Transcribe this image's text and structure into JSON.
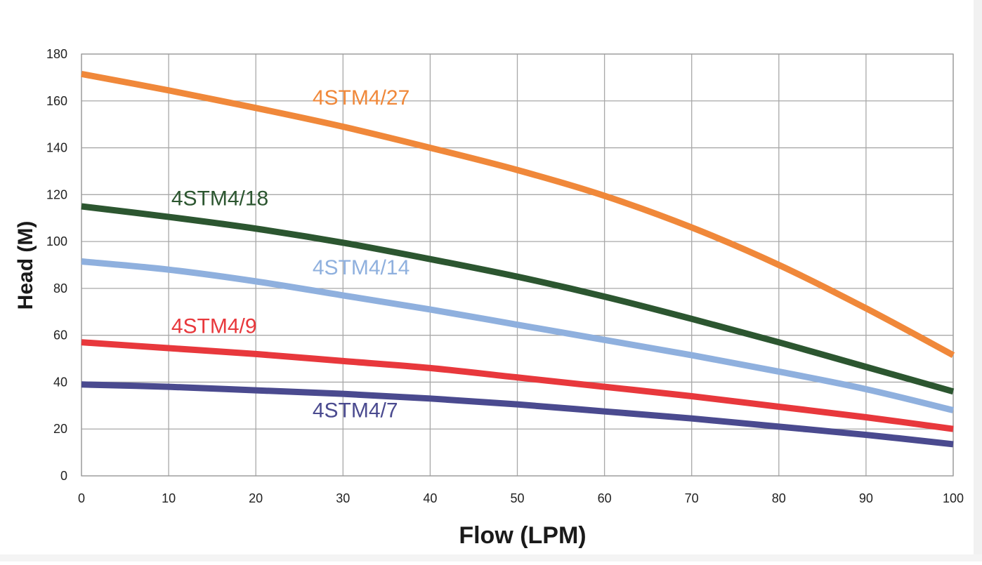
{
  "chart_data": {
    "type": "line",
    "xlabel": "Flow (LPM)",
    "ylabel": "Head (M)",
    "xlim": [
      0,
      100
    ],
    "ylim": [
      0,
      180
    ],
    "x_ticks": [
      0,
      10,
      20,
      30,
      40,
      50,
      60,
      70,
      80,
      90,
      100
    ],
    "y_ticks": [
      0,
      20,
      40,
      60,
      80,
      100,
      120,
      140,
      160,
      180
    ],
    "grid": true,
    "legend": "inline labels",
    "series": [
      {
        "name": "4STM4/27",
        "color": "#f0883a",
        "x": [
          0,
          10,
          20,
          30,
          40,
          50,
          60,
          70,
          80,
          90,
          100
        ],
        "y": [
          171.5,
          164.5,
          157,
          149,
          140,
          130.5,
          119.5,
          106,
          90,
          71.5,
          51.5
        ]
      },
      {
        "name": "4STM4/18",
        "color": "#2c5630",
        "x": [
          0,
          10,
          20,
          30,
          40,
          50,
          60,
          70,
          80,
          90,
          100
        ],
        "y": [
          115,
          110.5,
          105.5,
          99.5,
          92.5,
          85,
          76.5,
          67,
          57,
          46.5,
          36
        ]
      },
      {
        "name": "4STM4/14",
        "color": "#8fb0de",
        "x": [
          0,
          10,
          20,
          30,
          40,
          50,
          60,
          70,
          80,
          90,
          100
        ],
        "y": [
          91.5,
          88,
          83,
          77,
          71,
          64.5,
          58,
          51.5,
          44.5,
          37,
          28
        ]
      },
      {
        "name": "4STM4/9",
        "color": "#e8383c",
        "x": [
          0,
          10,
          20,
          30,
          40,
          50,
          60,
          70,
          80,
          90,
          100
        ],
        "y": [
          57,
          54.5,
          52,
          49,
          46,
          42,
          38,
          34,
          29.5,
          25,
          20
        ]
      },
      {
        "name": "4STM4/7",
        "color": "#4a4a8f",
        "x": [
          0,
          10,
          20,
          30,
          40,
          50,
          60,
          70,
          80,
          90,
          100
        ],
        "y": [
          39,
          38,
          36.5,
          35,
          33,
          30.5,
          27.5,
          24.5,
          21,
          17.5,
          13.5
        ]
      }
    ],
    "series_labels": [
      {
        "name": "4STM4/27",
        "at_x": 26.5,
        "at_y": 158.5
      },
      {
        "name": "4STM4/18",
        "at_x": 10.3,
        "at_y": 115.5
      },
      {
        "name": "4STM4/14",
        "at_x": 26.5,
        "at_y": 86
      },
      {
        "name": "4STM4/9",
        "at_x": 10.3,
        "at_y": 61
      },
      {
        "name": "4STM4/7",
        "at_x": 26.5,
        "at_y": 25
      }
    ]
  }
}
